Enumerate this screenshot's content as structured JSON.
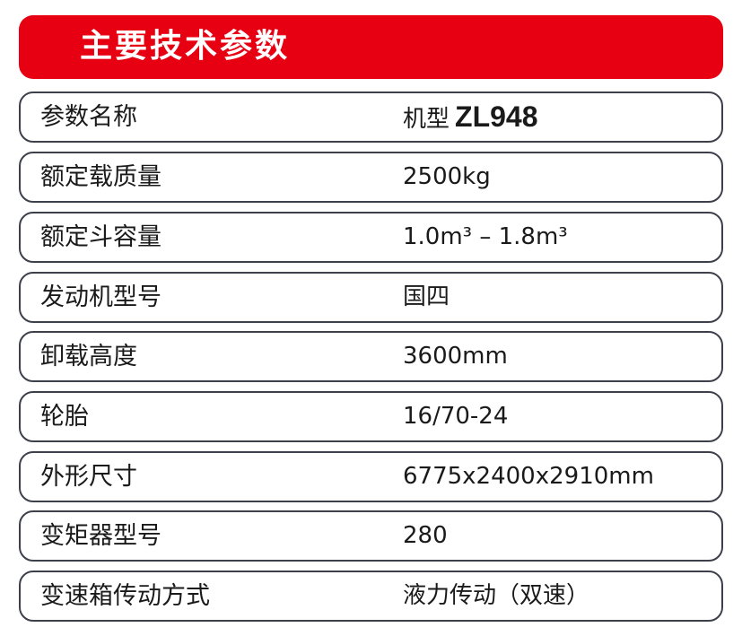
{
  "header": {
    "title": "主要技术参数",
    "color": "#e60012"
  },
  "first_row": {
    "label": "参数名称",
    "value_prefix": "机型",
    "model": "ZL948"
  },
  "rows": [
    {
      "label": "额定载质量",
      "value": "2500kg"
    },
    {
      "label": "额定斗容量",
      "value": "1.0m³ – 1.8m³"
    },
    {
      "label": "发动机型号",
      "value": "国四"
    },
    {
      "label": "卸载高度",
      "value": "3600mm"
    },
    {
      "label": "轮胎",
      "value": "16/70-24"
    },
    {
      "label": "外形尺寸",
      "value": "6775x2400x2910mm"
    },
    {
      "label": "变矩器型号",
      "value": "280"
    },
    {
      "label": "变速箱传动方式",
      "value": "液力传动（双速）"
    }
  ]
}
